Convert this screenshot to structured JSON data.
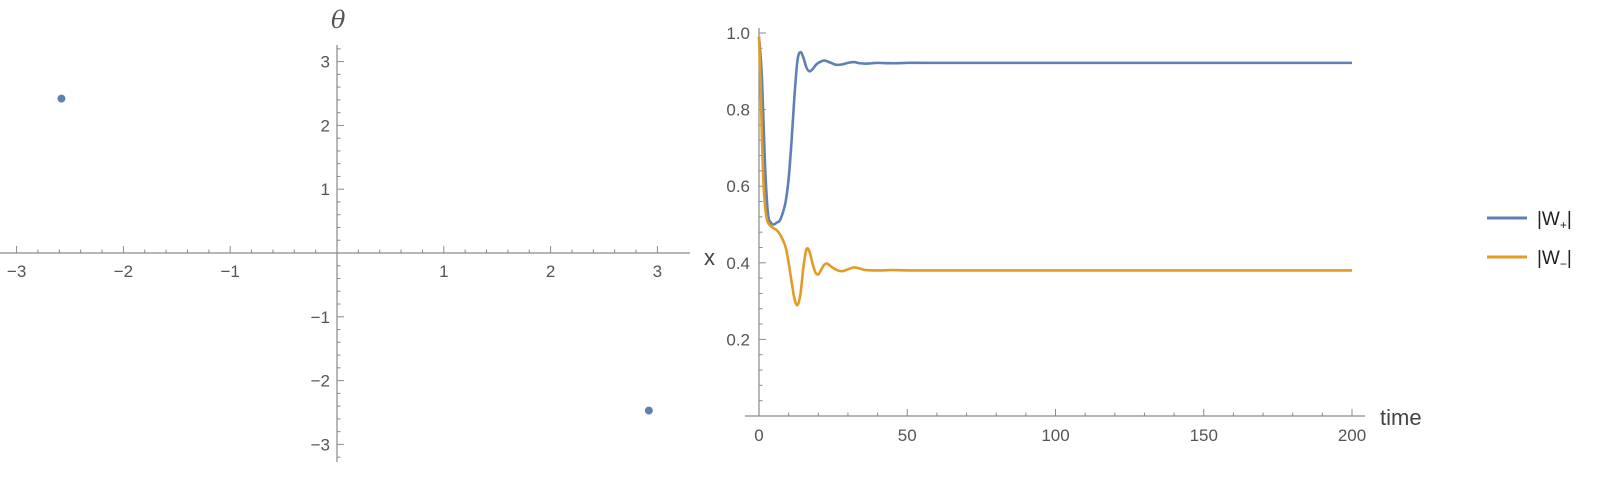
{
  "chart_data": [
    {
      "type": "scatter",
      "xlabel": "x",
      "ylabel": "θ",
      "xlim": [
        -3.15,
        3.15
      ],
      "ylim": [
        -3.2,
        3.2
      ],
      "x_ticks": [
        -3,
        -2,
        -1,
        1,
        2,
        3
      ],
      "y_ticks": [
        -3,
        -2,
        -1,
        1,
        2,
        3
      ],
      "x_tick_labels": [
        "−3",
        "−2",
        "−1",
        "1",
        "2",
        "3"
      ],
      "y_tick_labels": [
        "−3",
        "−2",
        "−1",
        "1",
        "2",
        "3"
      ],
      "points": [
        {
          "x": -2.58,
          "y": 2.42
        },
        {
          "x": 2.92,
          "y": -2.47
        }
      ],
      "color": "#5E81B5"
    },
    {
      "type": "line",
      "xlabel": "time",
      "ylabel": "",
      "xlim": [
        0,
        200
      ],
      "ylim": [
        0.0,
        1.0
      ],
      "x_ticks": [
        0,
        50,
        100,
        150,
        200
      ],
      "y_ticks": [
        0.2,
        0.4,
        0.6,
        0.8,
        1.0
      ],
      "x_tick_labels": [
        "0",
        "50",
        "100",
        "150",
        "200"
      ],
      "y_tick_labels": [
        "0.2",
        "0.4",
        "0.6",
        "0.8",
        "1.0"
      ],
      "legend_position": "right",
      "series": [
        {
          "name": "|W+|",
          "legend_base": "|W",
          "legend_sub": "+",
          "legend_end": "|",
          "color": "#5E81B5",
          "x": [
            0,
            1,
            2,
            3,
            4,
            5,
            6,
            7,
            8,
            9,
            10,
            11,
            12,
            13,
            14,
            15,
            16,
            17,
            18,
            19,
            20,
            22,
            24,
            26,
            28,
            30,
            32,
            34,
            36,
            38,
            40,
            45,
            50,
            55,
            60,
            80,
            100,
            150,
            200
          ],
          "values": [
            0.99,
            0.88,
            0.66,
            0.53,
            0.505,
            0.5,
            0.505,
            0.51,
            0.53,
            0.56,
            0.62,
            0.72,
            0.84,
            0.93,
            0.95,
            0.935,
            0.91,
            0.9,
            0.905,
            0.915,
            0.922,
            0.928,
            0.923,
            0.917,
            0.918,
            0.922,
            0.924,
            0.921,
            0.92,
            0.921,
            0.922,
            0.921,
            0.922,
            0.922,
            0.922,
            0.922,
            0.922,
            0.922,
            0.922
          ]
        },
        {
          "name": "|W−|",
          "legend_base": "|W",
          "legend_sub": "−",
          "legend_end": "|",
          "color": "#E19C24",
          "x": [
            0,
            0.5,
            1,
            1.5,
            2,
            2.5,
            3,
            3.5,
            4,
            5,
            6,
            7,
            8,
            9,
            10,
            11,
            12,
            13,
            14,
            15,
            16,
            17,
            18,
            19,
            20,
            21,
            22,
            23,
            24,
            26,
            28,
            30,
            32,
            34,
            36,
            40,
            45,
            50,
            60,
            80,
            100,
            150,
            200
          ],
          "values": [
            0.99,
            0.88,
            0.72,
            0.61,
            0.55,
            0.52,
            0.505,
            0.5,
            0.495,
            0.49,
            0.485,
            0.475,
            0.46,
            0.44,
            0.4,
            0.35,
            0.305,
            0.29,
            0.32,
            0.39,
            0.435,
            0.43,
            0.4,
            0.375,
            0.37,
            0.382,
            0.395,
            0.398,
            0.392,
            0.382,
            0.378,
            0.383,
            0.388,
            0.385,
            0.381,
            0.38,
            0.381,
            0.38,
            0.38,
            0.38,
            0.38,
            0.38,
            0.38
          ]
        }
      ]
    }
  ]
}
